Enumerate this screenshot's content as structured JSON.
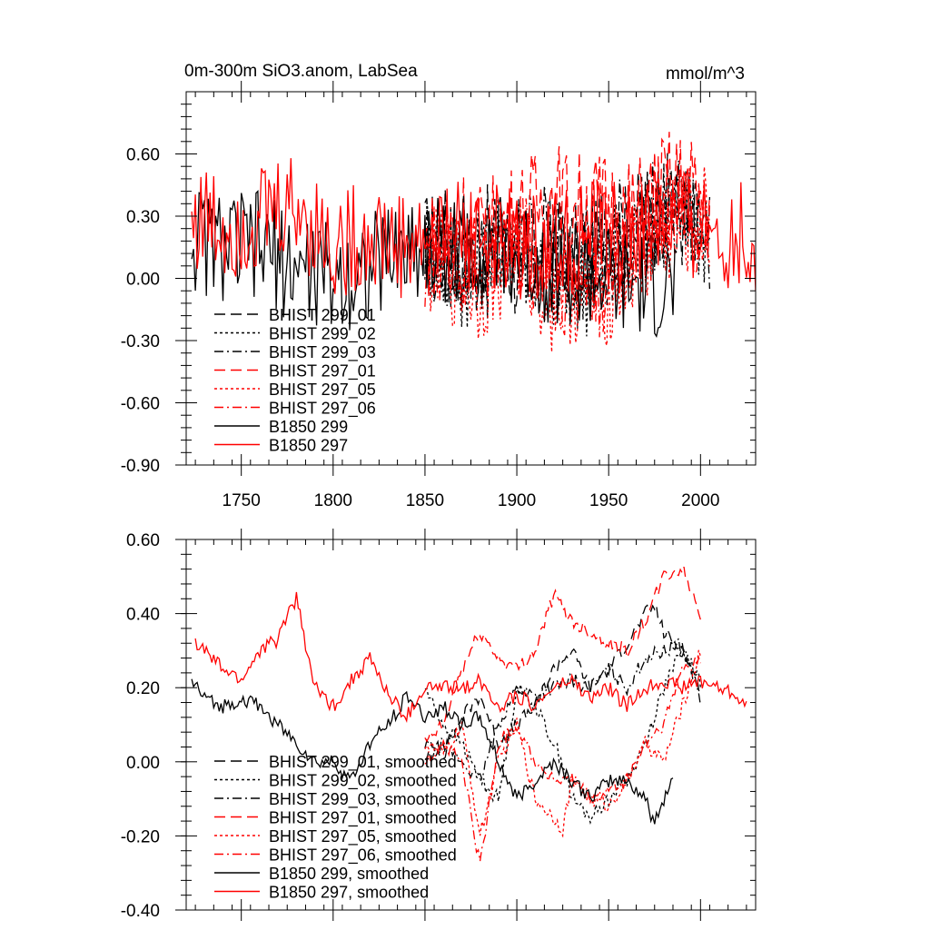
{
  "chart_data": [
    {
      "type": "line",
      "title": "0m-300m SiO3.anom, LabSea",
      "units": "mmol/m^3",
      "xlim": [
        1720,
        2030
      ],
      "ylim": [
        -0.9,
        0.9
      ],
      "xticks": [
        1750,
        1800,
        1850,
        1900,
        1950,
        2000
      ],
      "xtick_labels": [
        "1750",
        "1800",
        "1850",
        "1900",
        "1950",
        "2000"
      ],
      "yticks": [
        -0.9,
        -0.6,
        -0.3,
        0.0,
        0.3,
        0.6
      ],
      "ytick_labels": [
        "-0.90",
        "-0.60",
        "-0.30",
        "0.00",
        "0.30",
        "0.60"
      ],
      "legend_position": "bottom-left",
      "series": [
        {
          "name": "BHIST 299_01",
          "color": "#000000",
          "dash": "longdash",
          "x_range": [
            1850,
            2005
          ],
          "x": [
            1850,
            1860,
            1870,
            1880,
            1890,
            1900,
            1910,
            1920,
            1930,
            1940,
            1950,
            1960,
            1970,
            1980,
            1990,
            2000,
            2005
          ],
          "values": [
            0.15,
            0.2,
            0.1,
            0.2,
            0.15,
            0.05,
            0.1,
            0.15,
            0.1,
            0.1,
            0.15,
            0.2,
            0.3,
            0.35,
            0.3,
            0.2,
            0.15
          ]
        },
        {
          "name": "BHIST 299_02",
          "color": "#000000",
          "dash": "dot",
          "x_range": [
            1850,
            2005
          ],
          "x": [
            1850,
            1860,
            1870,
            1880,
            1890,
            1900,
            1910,
            1920,
            1930,
            1940,
            1950,
            1960,
            1970,
            1980,
            1990,
            2000,
            2005
          ],
          "values": [
            0.2,
            0.05,
            0.0,
            0.1,
            0.15,
            0.2,
            0.05,
            0.0,
            -0.05,
            0.0,
            0.1,
            0.15,
            0.25,
            0.3,
            0.3,
            0.25,
            0.2
          ]
        },
        {
          "name": "BHIST 299_03",
          "color": "#000000",
          "dash": "dashdot",
          "x_range": [
            1850,
            2005
          ],
          "x": [
            1850,
            1860,
            1870,
            1880,
            1890,
            1900,
            1910,
            1920,
            1930,
            1940,
            1950,
            1960,
            1970,
            1980,
            1990,
            2000,
            2005
          ],
          "values": [
            0.1,
            0.15,
            0.1,
            0.05,
            0.1,
            0.15,
            0.2,
            0.2,
            0.15,
            0.2,
            0.2,
            0.25,
            0.3,
            0.3,
            0.3,
            0.25,
            0.2
          ]
        },
        {
          "name": "BHIST 297_01",
          "color": "#ff0000",
          "dash": "longdash",
          "x_range": [
            1850,
            2005
          ],
          "x": [
            1850,
            1860,
            1870,
            1880,
            1890,
            1900,
            1910,
            1920,
            1930,
            1940,
            1950,
            1960,
            1970,
            1980,
            1990,
            2000,
            2005
          ],
          "values": [
            0.15,
            0.2,
            0.3,
            0.2,
            0.25,
            0.3,
            0.35,
            0.4,
            0.35,
            0.35,
            0.35,
            0.3,
            0.35,
            0.45,
            0.45,
            0.4,
            0.35
          ]
        },
        {
          "name": "BHIST 297_05",
          "color": "#ff0000",
          "dash": "dot",
          "x_range": [
            1850,
            2005
          ],
          "x": [
            1850,
            1860,
            1870,
            1880,
            1890,
            1900,
            1910,
            1920,
            1930,
            1940,
            1950,
            1960,
            1970,
            1980,
            1990,
            2000,
            2005
          ],
          "values": [
            0.1,
            0.05,
            0.0,
            -0.05,
            0.05,
            0.15,
            0.0,
            -0.1,
            -0.05,
            -0.1,
            -0.05,
            0.05,
            0.1,
            0.2,
            0.25,
            0.3,
            0.25
          ]
        },
        {
          "name": "BHIST 297_06",
          "color": "#ff0000",
          "dash": "dashdot",
          "x_range": [
            1850,
            2005
          ],
          "x": [
            1850,
            1860,
            1870,
            1880,
            1890,
            1900,
            1910,
            1920,
            1930,
            1940,
            1950,
            1960,
            1970,
            1980,
            1990,
            2000,
            2005
          ],
          "values": [
            0.1,
            0.1,
            0.05,
            0.1,
            0.2,
            0.15,
            0.1,
            0.0,
            0.0,
            -0.05,
            0.0,
            0.1,
            0.2,
            0.3,
            0.3,
            0.25,
            0.25
          ]
        },
        {
          "name": "B1850 299",
          "color": "#000000",
          "dash": "solid",
          "x_range": [
            1723,
            1987
          ],
          "x": [
            1723,
            1740,
            1760,
            1780,
            1800,
            1820,
            1840,
            1860,
            1880,
            1900,
            1920,
            1940,
            1960,
            1980,
            1987
          ],
          "values": [
            0.2,
            0.15,
            0.15,
            0.05,
            0.0,
            0.05,
            0.15,
            0.15,
            0.15,
            0.1,
            0.05,
            0.0,
            -0.05,
            -0.05,
            -0.05
          ]
        },
        {
          "name": "B1850 297",
          "color": "#ff0000",
          "dash": "solid",
          "x_range": [
            1723,
            2030
          ],
          "x": [
            1723,
            1740,
            1760,
            1780,
            1800,
            1820,
            1840,
            1860,
            1880,
            1900,
            1920,
            1940,
            1960,
            1980,
            2000,
            2020,
            2030
          ],
          "values": [
            0.3,
            0.25,
            0.3,
            0.35,
            0.15,
            0.2,
            0.15,
            0.2,
            0.2,
            0.15,
            0.15,
            0.2,
            0.2,
            0.25,
            0.25,
            0.2,
            0.15
          ]
        }
      ]
    },
    {
      "type": "line",
      "xlim": [
        1720,
        2030
      ],
      "ylim": [
        -0.4,
        0.6
      ],
      "yticks": [
        -0.4,
        -0.2,
        0.0,
        0.2,
        0.4,
        0.6
      ],
      "ytick_labels": [
        "-0.40",
        "-0.20",
        "0.00",
        "0.20",
        "0.40",
        "0.60"
      ],
      "legend_position": "bottom-left",
      "series": [
        {
          "name": "BHIST 299_01, smoothed",
          "color": "#000000",
          "dash": "longdash",
          "x": [
            1850,
            1860,
            1870,
            1880,
            1890,
            1900,
            1910,
            1920,
            1930,
            1940,
            1950,
            1960,
            1970,
            1975,
            1980,
            1990,
            2000
          ],
          "values": [
            0.05,
            0.02,
            0.12,
            0.18,
            0.05,
            0.1,
            0.15,
            0.25,
            0.3,
            0.2,
            0.25,
            0.32,
            0.4,
            0.42,
            0.35,
            0.3,
            0.2
          ]
        },
        {
          "name": "BHIST 299_02, smoothed",
          "color": "#000000",
          "dash": "dot",
          "x": [
            1850,
            1860,
            1870,
            1880,
            1890,
            1900,
            1910,
            1920,
            1925,
            1930,
            1940,
            1950,
            1960,
            1970,
            1980,
            1990,
            2000
          ],
          "values": [
            0.2,
            0.1,
            0.05,
            -0.05,
            -0.1,
            0.2,
            0.15,
            0.05,
            0.0,
            -0.1,
            -0.15,
            -0.1,
            -0.05,
            0.05,
            0.2,
            0.3,
            0.22
          ]
        },
        {
          "name": "BHIST 299_03, smoothed",
          "color": "#000000",
          "dash": "dashdot",
          "x": [
            1850,
            1860,
            1870,
            1880,
            1890,
            1900,
            1910,
            1920,
            1930,
            1940,
            1950,
            1960,
            1970,
            1980,
            1990,
            2000
          ],
          "values": [
            0.0,
            0.05,
            0.0,
            -0.05,
            0.1,
            0.2,
            0.18,
            0.2,
            0.22,
            0.2,
            0.25,
            0.2,
            0.28,
            0.3,
            0.32,
            0.17
          ]
        },
        {
          "name": "BHIST 297_01, smoothed",
          "color": "#ff0000",
          "dash": "longdash",
          "x": [
            1850,
            1860,
            1870,
            1880,
            1890,
            1900,
            1910,
            1920,
            1930,
            1940,
            1950,
            1960,
            1970,
            1980,
            1990,
            2000
          ],
          "values": [
            0.05,
            0.1,
            0.25,
            0.35,
            0.28,
            0.25,
            0.3,
            0.45,
            0.38,
            0.35,
            0.32,
            0.3,
            0.38,
            0.5,
            0.52,
            0.4
          ]
        },
        {
          "name": "BHIST 297_05, smoothed",
          "color": "#ff0000",
          "dash": "dot",
          "x": [
            1850,
            1860,
            1870,
            1880,
            1890,
            1900,
            1910,
            1920,
            1925,
            1930,
            1940,
            1950,
            1960,
            1970,
            1980,
            1990,
            2000
          ],
          "values": [
            0.05,
            0.02,
            0.1,
            -0.2,
            0.0,
            0.1,
            -0.1,
            -0.15,
            -0.18,
            -0.05,
            -0.1,
            -0.12,
            -0.05,
            0.05,
            0.0,
            0.15,
            0.3
          ]
        },
        {
          "name": "BHIST 297_06, smoothed",
          "color": "#ff0000",
          "dash": "dashdot",
          "x": [
            1850,
            1860,
            1870,
            1880,
            1890,
            1900,
            1910,
            1920,
            1930,
            1940,
            1950,
            1960,
            1970,
            1980,
            1990,
            2000
          ],
          "values": [
            0.0,
            0.05,
            0.0,
            -0.28,
            0.05,
            0.1,
            0.0,
            -0.05,
            -0.05,
            -0.1,
            -0.08,
            -0.05,
            0.05,
            0.1,
            0.25,
            0.28
          ]
        },
        {
          "name": "B1850 299, smoothed",
          "color": "#000000",
          "dash": "solid",
          "x": [
            1723,
            1730,
            1740,
            1750,
            1760,
            1770,
            1780,
            1790,
            1800,
            1810,
            1820,
            1830,
            1840,
            1850,
            1860,
            1870,
            1880,
            1890,
            1900,
            1910,
            1920,
            1930,
            1940,
            1950,
            1960,
            1970,
            1975,
            1980,
            1985
          ],
          "values": [
            0.22,
            0.17,
            0.15,
            0.17,
            0.15,
            0.1,
            0.05,
            0.0,
            0.0,
            -0.05,
            0.05,
            0.1,
            0.18,
            0.12,
            0.15,
            0.1,
            0.12,
            0.0,
            -0.1,
            -0.05,
            0.0,
            -0.05,
            -0.1,
            -0.05,
            -0.05,
            -0.1,
            -0.17,
            -0.1,
            -0.04
          ]
        },
        {
          "name": "B1850 297, smoothed",
          "color": "#ff0000",
          "dash": "solid",
          "x": [
            1725,
            1730,
            1740,
            1750,
            1760,
            1770,
            1775,
            1780,
            1790,
            1800,
            1810,
            1820,
            1830,
            1840,
            1850,
            1860,
            1870,
            1880,
            1890,
            1900,
            1910,
            1920,
            1930,
            1940,
            1950,
            1960,
            1970,
            1980,
            1990,
            2000,
            2010,
            2020,
            2025
          ],
          "values": [
            0.32,
            0.3,
            0.25,
            0.22,
            0.3,
            0.33,
            0.4,
            0.44,
            0.2,
            0.15,
            0.22,
            0.28,
            0.18,
            0.12,
            0.2,
            0.2,
            0.2,
            0.22,
            0.15,
            0.18,
            0.15,
            0.2,
            0.22,
            0.17,
            0.2,
            0.15,
            0.2,
            0.22,
            0.2,
            0.22,
            0.2,
            0.18,
            0.15
          ]
        }
      ]
    }
  ]
}
